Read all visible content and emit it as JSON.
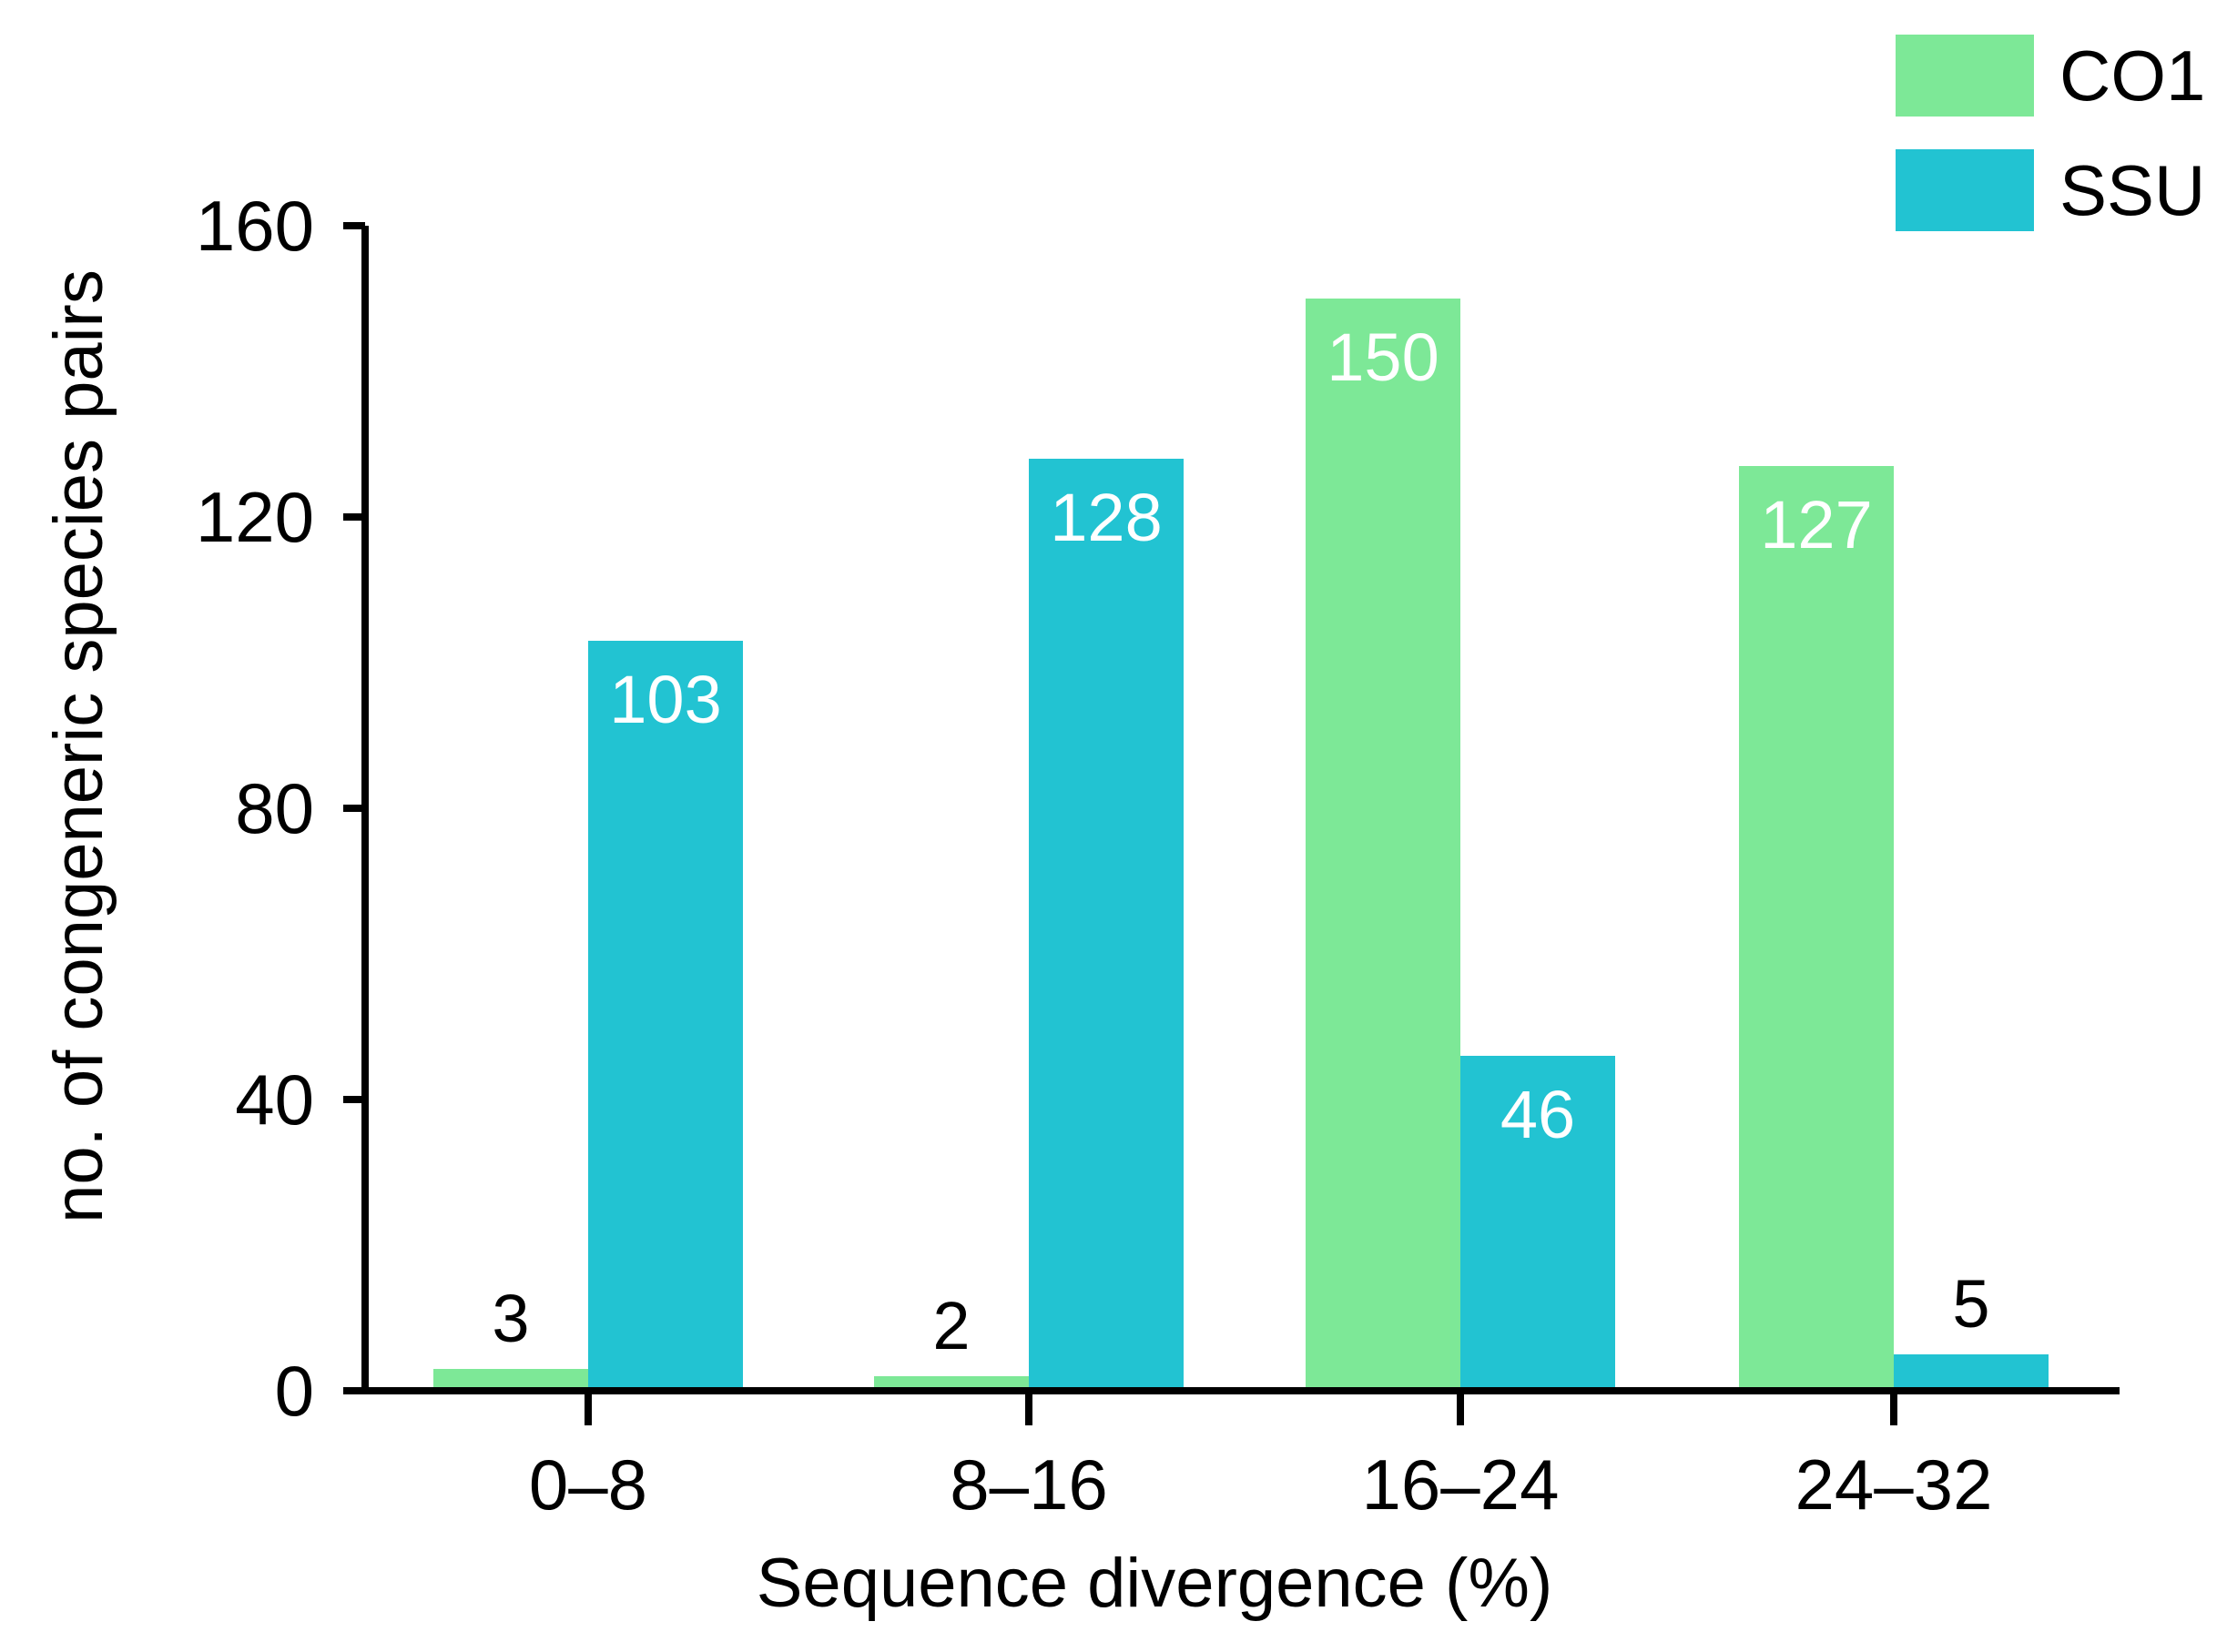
{
  "chart_data": {
    "type": "bar",
    "title": "",
    "xlabel": "Sequence divergence (%)",
    "ylabel": "no. of congeneric species pairs",
    "categories": [
      "0–8",
      "8–16",
      "16–24",
      "24–32"
    ],
    "ylim": [
      0,
      160
    ],
    "yticks": [
      0,
      40,
      80,
      120,
      160
    ],
    "grid": false,
    "legend_position": "top-right",
    "series": [
      {
        "name": "CO1",
        "color": "#7de897",
        "values": [
          3,
          2,
          150,
          127
        ]
      },
      {
        "name": "SSU",
        "color": "#22c3d2",
        "values": [
          103,
          128,
          46,
          5
        ]
      }
    ]
  }
}
